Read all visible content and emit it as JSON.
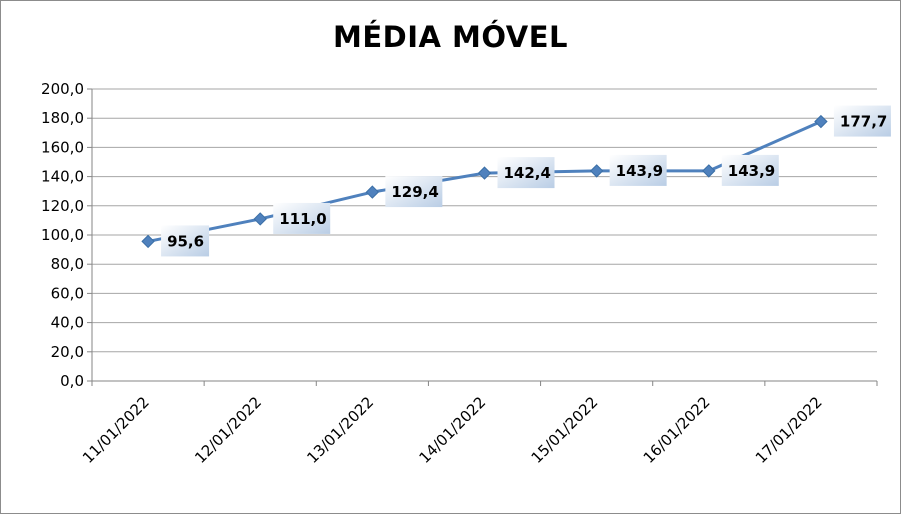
{
  "chart_data": {
    "type": "line",
    "title": "MÉDIA MÓVEL",
    "xlabel": "",
    "ylabel": "",
    "categories": [
      "11/01/2022",
      "12/01/2022",
      "13/01/2022",
      "14/01/2022",
      "15/01/2022",
      "16/01/2022",
      "17/01/2022"
    ],
    "series": [
      {
        "values": [
          95.6,
          111.0,
          129.4,
          142.4,
          143.9,
          143.9,
          177.7
        ]
      }
    ],
    "data_labels": [
      "95,6",
      "111,0",
      "129,4",
      "142,4",
      "143,9",
      "143,9",
      "177,7"
    ],
    "yticks": [
      "0,0",
      "20,0",
      "40,0",
      "60,0",
      "80,0",
      "100,0",
      "120,0",
      "140,0",
      "160,0",
      "180,0",
      "200,0"
    ],
    "ylim": [
      0,
      200
    ],
    "grid": true,
    "legend": "none",
    "colors": {
      "line": "#4f81bd",
      "grid": "#a6a6a6",
      "label_bg_top": "#ffffff",
      "label_bg_bottom": "#b9cde5"
    }
  }
}
